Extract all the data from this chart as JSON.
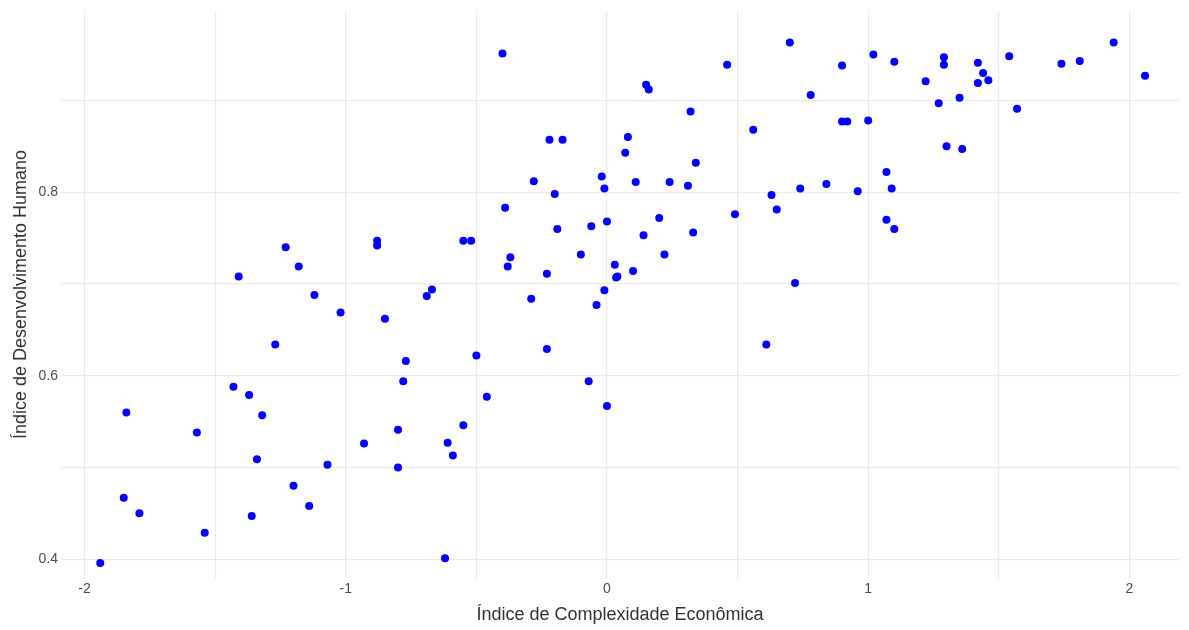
{
  "chart_data": {
    "type": "scatter",
    "xlabel": "Índice de Complexidade Econômica",
    "ylabel": "Índice de Desenvolvimento Humano",
    "xlim": [
      -2.09,
      2.19
    ],
    "ylim": [
      0.38,
      0.997
    ],
    "xticks": [
      -2,
      {
        "value": -1.5,
        "label": null
      },
      -1,
      {
        "value": -0.5,
        "label": null
      },
      0,
      {
        "value": 0.5,
        "label": null
      },
      1,
      {
        "value": 1.5,
        "label": null
      },
      2
    ],
    "yticks": [
      0.4,
      {
        "value": 0.5,
        "label": null
      },
      0.6,
      {
        "value": 0.7,
        "label": null
      },
      0.8,
      {
        "value": 0.9,
        "label": null
      }
    ],
    "grid": true,
    "legend": false,
    "marker": "circle",
    "series": [
      {
        "color": "#0000ff",
        "x": [
          -1.94,
          -1.84,
          -1.85,
          -1.79,
          -1.57,
          -1.54,
          -1.43,
          -1.41,
          -1.37,
          -1.36,
          -1.34,
          -1.32,
          -1.27,
          -1.23,
          -1.2,
          -1.18,
          -1.14,
          -1.12,
          -1.07,
          -1.02,
          -0.93,
          -0.88,
          -0.88,
          -0.85,
          -0.8,
          -0.8,
          -0.78,
          -0.77,
          -0.69,
          -0.67,
          -0.62,
          -0.61,
          -0.59,
          -0.55,
          -0.55,
          -0.52,
          -0.5,
          -0.46,
          -0.4,
          -0.39,
          -0.37,
          -0.38,
          -0.29,
          -0.28,
          -0.23,
          -0.23,
          -0.22,
          -0.2,
          -0.19,
          -0.17,
          -0.1,
          -0.07,
          -0.06,
          -0.04,
          -0.02,
          -0.01,
          -0.01,
          0,
          0,
          0.03,
          0.035,
          0.04,
          0.07,
          0.08,
          0.1,
          0.11,
          0.14,
          0.15,
          0.16,
          0.2,
          0.22,
          0.24,
          0.31,
          0.32,
          0.33,
          0.34,
          0.46,
          0.49,
          0.56,
          0.61,
          0.63,
          0.65,
          0.7,
          0.72,
          0.74,
          0.78,
          0.84,
          0.9,
          0.9,
          0.92,
          0.96,
          1,
          1.02,
          1.07,
          1.07,
          1.09,
          1.1,
          1.1,
          1.22,
          1.27,
          1.29,
          1.29,
          1.3,
          1.35,
          1.36,
          1.42,
          1.42,
          1.44,
          1.46,
          1.54,
          1.57,
          1.74,
          1.81,
          1.94,
          2.06
        ],
        "values": [
          0.396,
          0.56,
          0.467,
          0.45,
          0.538,
          0.429,
          0.588,
          0.708,
          0.579,
          0.447,
          0.509,
          0.557,
          0.634,
          0.74,
          0.48,
          0.719,
          0.458,
          0.688,
          0.503,
          0.669,
          0.526,
          0.742,
          0.747,
          0.662,
          0.541,
          0.5,
          0.594,
          0.616,
          0.687,
          0.694,
          0.401,
          0.527,
          0.513,
          0.546,
          0.747,
          0.747,
          0.622,
          0.577,
          0.951,
          0.783,
          0.729,
          0.719,
          0.684,
          0.812,
          0.629,
          0.711,
          0.857,
          0.798,
          0.76,
          0.857,
          0.732,
          0.594,
          0.763,
          0.677,
          0.817,
          0.804,
          0.693,
          0.768,
          0.567,
          0.721,
          0.707,
          0.708,
          0.843,
          0.86,
          0.714,
          0.811,
          0.753,
          0.917,
          0.912,
          0.772,
          0.732,
          0.811,
          0.807,
          0.888,
          0.756,
          0.832,
          0.939,
          0.776,
          0.868,
          0.634,
          0.797,
          0.781,
          0.963,
          0.701,
          0.804,
          0.906,
          0.809,
          0.938,
          0.877,
          0.877,
          0.801,
          0.878,
          0.95,
          0.822,
          0.77,
          0.804,
          0.76,
          0.942,
          0.921,
          0.897,
          0.939,
          0.947,
          0.85,
          0.903,
          0.847,
          0.941,
          0.919,
          0.93,
          0.922,
          0.948,
          0.891,
          0.94,
          0.943,
          0.963,
          0.927
        ]
      }
    ]
  }
}
